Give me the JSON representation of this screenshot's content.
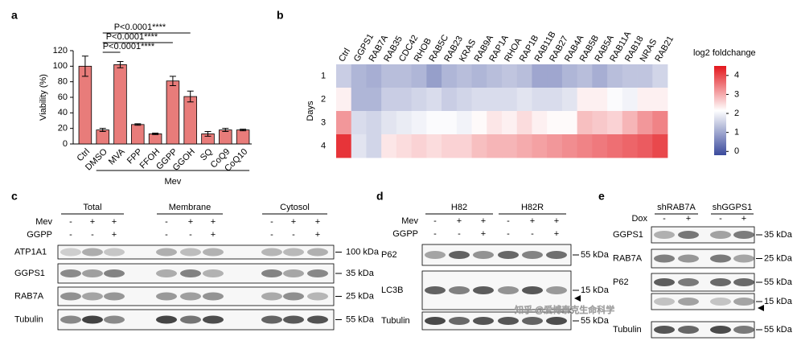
{
  "panel_labels": [
    "a",
    "b",
    "c",
    "d",
    "e"
  ],
  "chart_data": [
    {
      "type": "bar",
      "ylabel": "Viability (%)",
      "categories": [
        "Ctrl",
        "DMSO",
        "MVA",
        "FPP",
        "FFOH",
        "GGPP",
        "GGOH",
        "SQ",
        "CoQ9",
        "CoQ10"
      ],
      "values": [
        100,
        18,
        102,
        25,
        13,
        81,
        61,
        13,
        18,
        18
      ],
      "errors": [
        13,
        2,
        4,
        1,
        1,
        6,
        7,
        3,
        2,
        1
      ],
      "color": "#e87c7a",
      "ylim": [
        0,
        120
      ],
      "yticks": [
        0,
        20,
        40,
        60,
        80,
        100,
        120
      ],
      "group_label": "Mev",
      "annotations": [
        "P<0.0001****",
        "P<0.0001****",
        "P<0.0001****"
      ]
    },
    {
      "type": "heatmap",
      "x": [
        "Ctrl",
        "GGPS1",
        "RAB7A",
        "RAB35",
        "CDC42",
        "RHOB",
        "RAB5C",
        "RAB23",
        "KRAS",
        "RAB9A",
        "RAP1A",
        "RHOA",
        "RAP1B",
        "RAB11B",
        "RAB27",
        "RAB4A",
        "RAB5B",
        "RAB5A",
        "RAB11A",
        "RAB18",
        "NRAS",
        "RAB21"
      ],
      "label_colors": [
        "#000000",
        "#d62728",
        "#d62728",
        "#000000",
        "#000000",
        "#000000",
        "#000000",
        "#000000",
        "#000000",
        "#000000",
        "#000000",
        "#000000",
        "#000000",
        "#000000",
        "#000000",
        "#000000",
        "#000000",
        "#000000",
        "#000000",
        "#000000",
        "#000000",
        "#000000"
      ],
      "y": [
        "1",
        "2",
        "3",
        "4"
      ],
      "ylabel": "Days",
      "values": [
        [
          1.5,
          1.2,
          1.1,
          1.3,
          1.3,
          1.2,
          0.9,
          1.2,
          1.3,
          1.2,
          1.3,
          1.4,
          1.3,
          1.0,
          1.0,
          1.2,
          1.3,
          1.1,
          1.3,
          1.4,
          1.4,
          1.6
        ],
        [
          2.3,
          1.2,
          1.2,
          1.5,
          1.5,
          1.6,
          1.7,
          1.5,
          1.6,
          1.7,
          1.7,
          1.7,
          1.8,
          1.7,
          1.7,
          1.8,
          2.3,
          2.3,
          2.1,
          2.0,
          2.3,
          2.3
        ],
        [
          3.2,
          1.7,
          1.6,
          1.8,
          1.9,
          2.0,
          2.1,
          2.1,
          2.0,
          2.2,
          2.4,
          2.3,
          2.5,
          2.3,
          2.2,
          2.2,
          2.8,
          2.7,
          2.6,
          2.9,
          3.2,
          3.4
        ],
        [
          4.2,
          1.8,
          1.6,
          2.4,
          2.5,
          2.6,
          2.5,
          2.6,
          2.6,
          2.8,
          2.9,
          2.9,
          3.0,
          3.1,
          3.2,
          3.3,
          3.4,
          3.5,
          3.6,
          3.7,
          3.8,
          4.0
        ]
      ],
      "colorbar_label": "log2 foldchange",
      "zlim": [
        -0.2,
        4.5
      ],
      "zticks": [
        0,
        1,
        2,
        3,
        4
      ],
      "colors": {
        "low": "#3a4a9c",
        "mid": "#ffffff",
        "high": "#e3161c"
      }
    }
  ],
  "blots": [
    {
      "groups": [
        "Total",
        "Membrane",
        "Cytosol"
      ],
      "conditions": [
        {
          "name": "Mev",
          "signs": [
            "-",
            "+",
            "+",
            "-",
            "+",
            "+",
            "-",
            "+",
            "+"
          ]
        },
        {
          "name": "GGPP",
          "signs": [
            "-",
            "-",
            "+",
            "-",
            "-",
            "+",
            "-",
            "-",
            "+"
          ]
        }
      ],
      "rows": [
        {
          "label": "ATP1A1",
          "marker": "100 kDa"
        },
        {
          "label": "GGPS1",
          "marker": "35 kDa"
        },
        {
          "label": "RAB7A",
          "marker": "25 kDa"
        },
        {
          "label": "Tubulin",
          "marker": "55 kDa"
        }
      ]
    },
    {
      "groups": [
        "H82",
        "H82R"
      ],
      "conditions": [
        {
          "name": "Mev",
          "signs": [
            "-",
            "+",
            "+",
            "-",
            "+",
            "+"
          ]
        },
        {
          "name": "GGPP",
          "signs": [
            "-",
            "-",
            "+",
            "-",
            "-",
            "+"
          ]
        }
      ],
      "rows": [
        {
          "label": "P62",
          "marker": "55 kDa"
        },
        {
          "label": "LC3B",
          "marker": "15 kDa"
        },
        {
          "label": "Tubulin",
          "marker": "55 kDa"
        }
      ]
    },
    {
      "groups": [
        "shRAB7A",
        "shGGPS1"
      ],
      "conditions": [
        {
          "name": "Dox",
          "signs": [
            "-",
            "+",
            "-",
            "+"
          ]
        }
      ],
      "rows": [
        {
          "label": "GGPS1",
          "marker": "35 kDa"
        },
        {
          "label": "RAB7A",
          "marker": "25 kDa"
        },
        {
          "label": "P62",
          "marker": "55 kDa"
        },
        {
          "label": null,
          "marker": "15 kDa"
        },
        {
          "label": "Tubulin",
          "marker": "55 kDa"
        }
      ]
    }
  ],
  "watermark": "知乎 @爱博泰克生命科学"
}
